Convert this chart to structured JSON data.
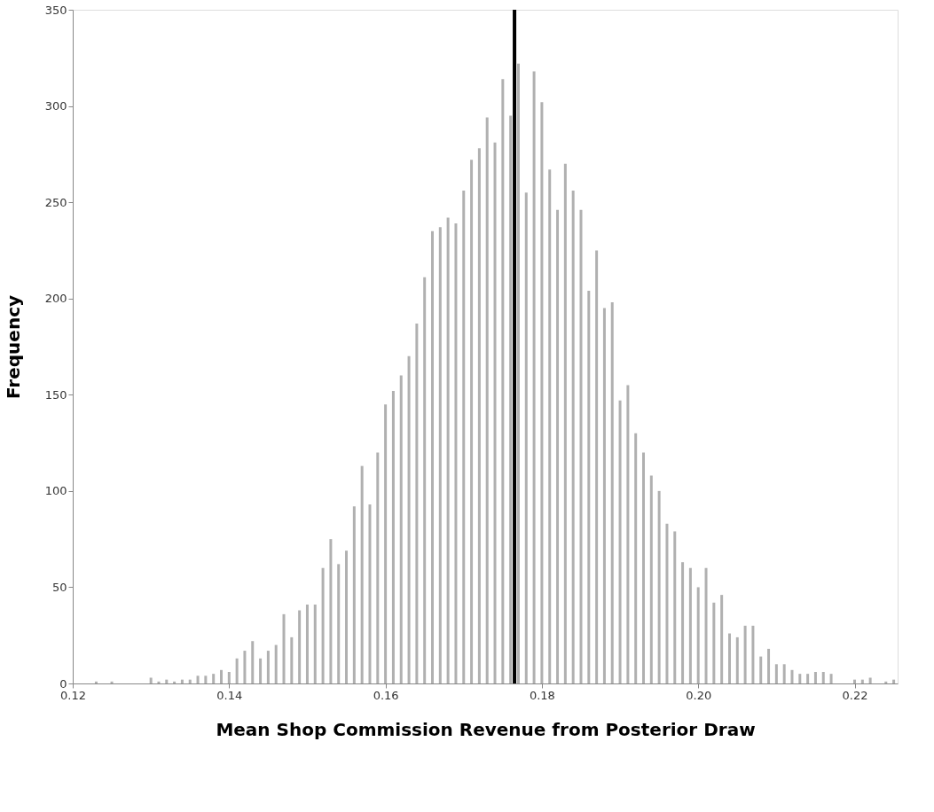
{
  "chart_data": {
    "type": "histogram",
    "xlabel": "Mean Shop Commission  Revenue from Posterior Draw",
    "ylabel": "Frequency",
    "bins": [
      0.1225,
      0.1235,
      0.1245,
      0.1255,
      0.1265,
      0.1275,
      0.1285,
      0.1295,
      0.1305,
      0.1315,
      0.1325,
      0.1335,
      0.1345,
      0.1355,
      0.1365,
      0.1375,
      0.1385,
      0.1395,
      0.1405,
      0.1415,
      0.1425,
      0.1435,
      0.1445,
      0.1455,
      0.1465,
      0.1475,
      0.1485,
      0.1495,
      0.1505,
      0.1515,
      0.1525,
      0.1535,
      0.1545,
      0.1555,
      0.1565,
      0.1575,
      0.1585,
      0.1595,
      0.1605,
      0.1615,
      0.1625,
      0.1635,
      0.1645,
      0.1655,
      0.1665,
      0.1675,
      0.1685,
      0.1695,
      0.1705,
      0.1715,
      0.1725,
      0.1735,
      0.1745,
      0.1755,
      0.1765,
      0.1775,
      0.1785,
      0.1795,
      0.1805,
      0.1815,
      0.1825,
      0.1835,
      0.1845,
      0.1855,
      0.1865,
      0.1875,
      0.1885,
      0.1895,
      0.1905,
      0.1915,
      0.1925,
      0.1935,
      0.1945,
      0.1955,
      0.1965,
      0.1975,
      0.1985,
      0.1995,
      0.2005,
      0.2015,
      0.2025,
      0.2035,
      0.2045,
      0.2055,
      0.2065,
      0.2075,
      0.2085,
      0.2095,
      0.2105,
      0.2115,
      0.2125,
      0.2135,
      0.2145,
      0.2155,
      0.2165,
      0.2175,
      0.2185,
      0.2195,
      0.2205,
      0.2215,
      0.2225,
      0.2235,
      0.2245,
      0.2255
    ],
    "values": [
      1,
      0,
      1,
      0,
      0,
      0,
      0,
      3,
      1,
      2,
      1,
      2,
      2,
      4,
      4,
      5,
      7,
      6,
      13,
      17,
      22,
      13,
      17,
      20,
      36,
      24,
      38,
      41,
      41,
      60,
      75,
      62,
      69,
      92,
      113,
      93,
      120,
      145,
      152,
      160,
      170,
      187,
      211,
      235,
      237,
      242,
      239,
      256,
      272,
      278,
      294,
      281,
      314,
      295,
      322,
      255,
      318,
      302,
      267,
      246,
      270,
      256,
      246,
      204,
      225,
      195,
      198,
      147,
      155,
      130,
      120,
      108,
      100,
      83,
      79,
      63,
      60,
      50,
      60,
      42,
      46,
      26,
      24,
      30,
      30,
      14,
      18,
      10,
      10,
      7,
      5,
      5,
      6,
      6,
      5,
      0,
      0,
      2,
      2,
      3,
      0,
      1,
      2
    ],
    "color": "#b0b0b0",
    "xlim": [
      0.12,
      0.2255
    ],
    "xticks": [
      0.12,
      0.14,
      0.16,
      0.18,
      {
        "value": 0.2,
        "label": "0.20"
      },
      0.22
    ],
    "ylim": [
      0,
      350
    ],
    "yticks": [
      0,
      50,
      100,
      150,
      200,
      250,
      300,
      350
    ],
    "ref_lines": [
      {
        "axis": "x",
        "value": 0.1765,
        "color": "#000000"
      }
    ],
    "grid": false
  }
}
